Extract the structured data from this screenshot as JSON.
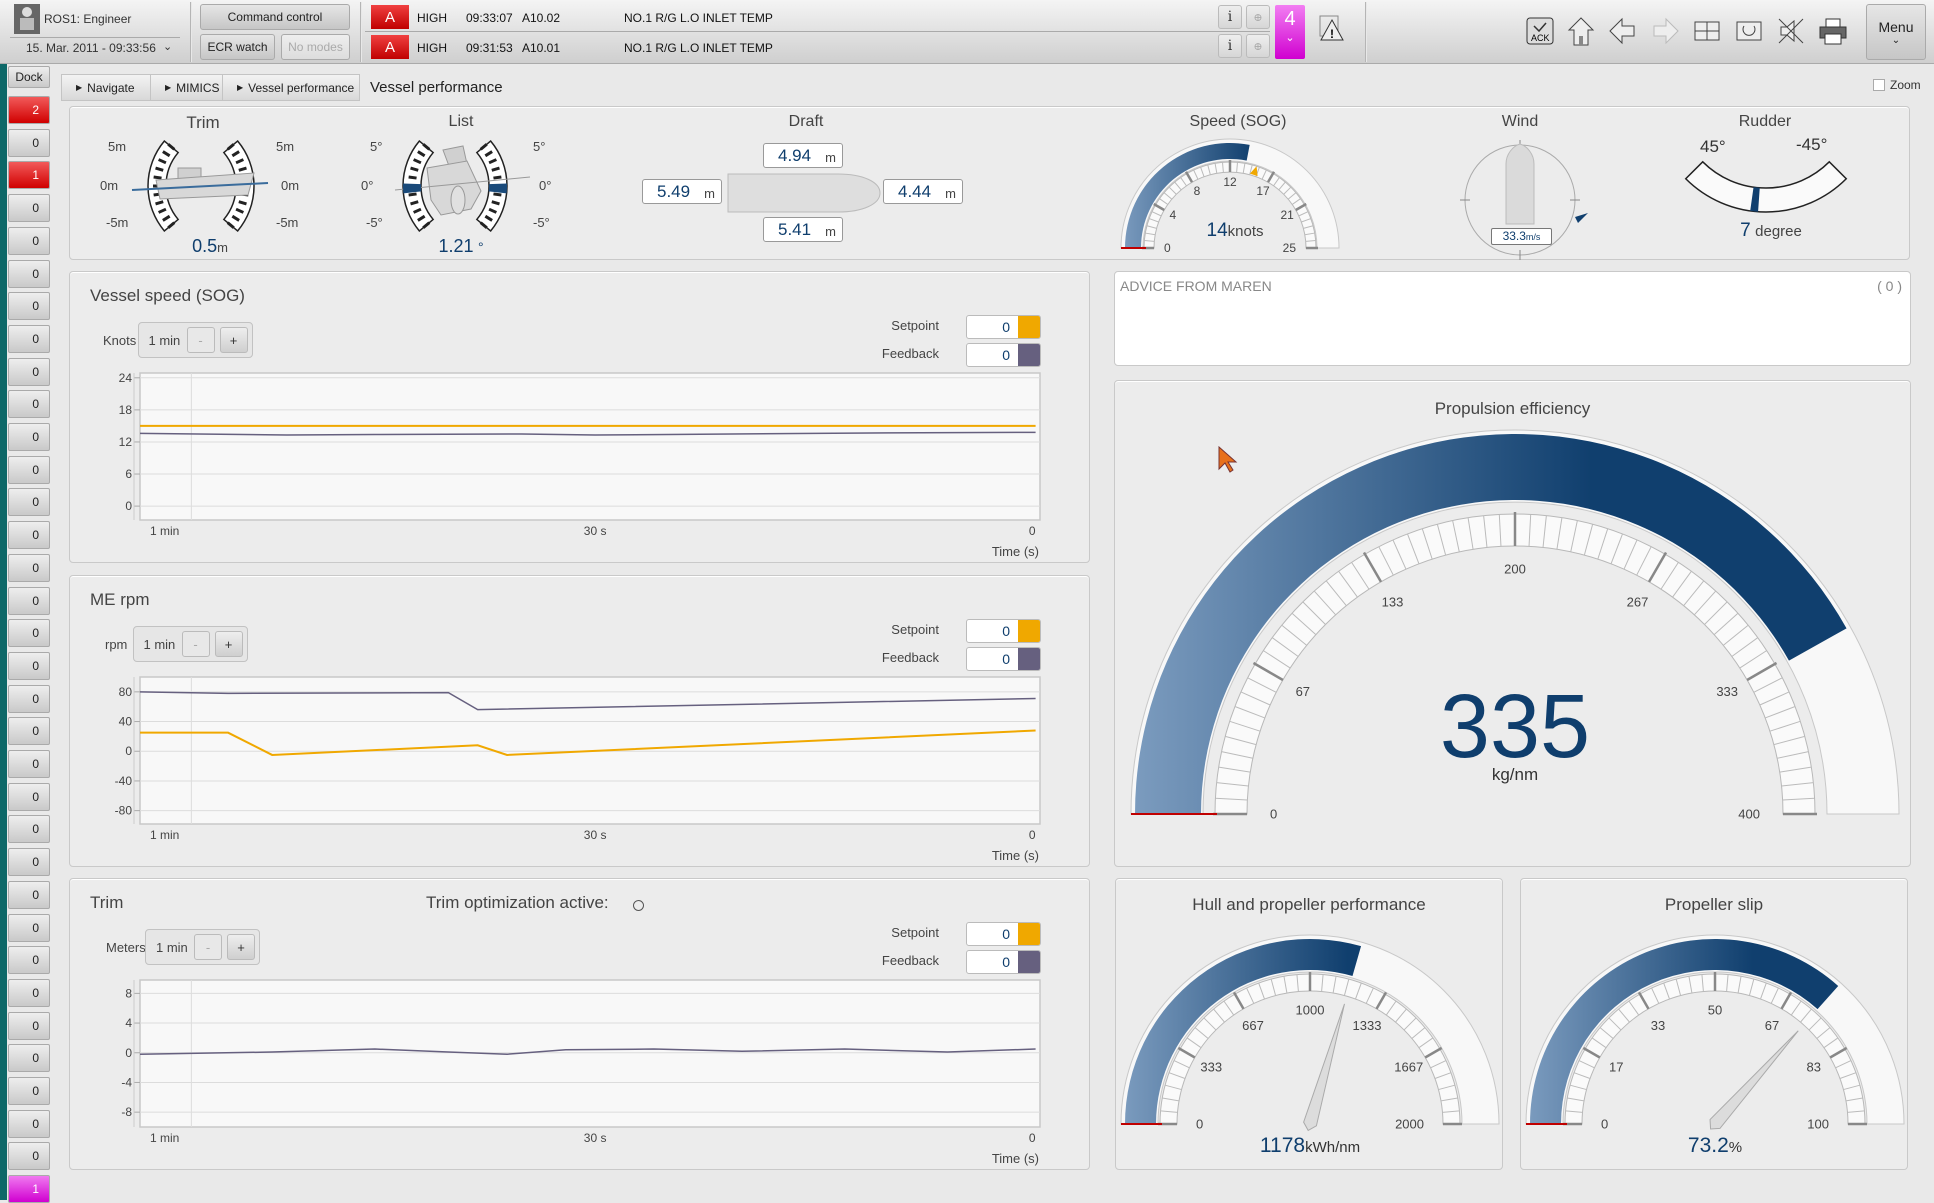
{
  "header": {
    "user": "ROS1: Engineer",
    "datetime": "15. Mar. 2011 - 09:33:56",
    "command_control": "Command control",
    "ecr_watch": "ECR watch",
    "no_modes": "No modes",
    "alarm_count": "4",
    "menu_label": "Menu",
    "alarms": [
      {
        "flag": "A",
        "level": "HIGH",
        "time": "09:33:07",
        "code": "A10.02",
        "text": "NO.1 R/G L.O INLET TEMP"
      },
      {
        "flag": "A",
        "level": "HIGH",
        "time": "09:31:53",
        "code": "A10.01",
        "text": "NO.1 R/G L.O INLET TEMP"
      }
    ],
    "toolbar_icons": [
      "ack-icon",
      "home-icon",
      "back-arrow-icon",
      "forward-arrow-icon",
      "window-layout-icon",
      "refresh-view-icon",
      "mute-sound-icon",
      "printer-icon"
    ],
    "ack_label": "ACK"
  },
  "sidebar": {
    "dock_label": "Dock",
    "items": [
      "2",
      "0",
      "1",
      "0",
      "0",
      "0",
      "0",
      "0",
      "0",
      "0",
      "0",
      "0",
      "0",
      "0",
      "0",
      "0",
      "0",
      "0",
      "0",
      "0",
      "0",
      "0",
      "0",
      "0",
      "0",
      "0",
      "0",
      "0",
      "0",
      "0",
      "0",
      "0",
      "0",
      "1"
    ],
    "item_states": [
      "alarm",
      "normal",
      "alarm",
      "normal",
      "normal",
      "normal",
      "normal",
      "normal",
      "normal",
      "normal",
      "normal",
      "normal",
      "normal",
      "normal",
      "normal",
      "normal",
      "normal",
      "normal",
      "normal",
      "normal",
      "normal",
      "normal",
      "normal",
      "normal",
      "normal",
      "normal",
      "normal",
      "normal",
      "normal",
      "normal",
      "normal",
      "normal",
      "normal",
      "warning"
    ]
  },
  "breadcrumb": {
    "items": [
      "Navigate",
      "MIMICS",
      "Vessel performance"
    ],
    "current": "Vessel performance"
  },
  "zoom_label": "Zoom",
  "colors": {
    "value_blue": "#0f3e6d",
    "setpoint": "#f0a800",
    "feedback": "#66607f",
    "alarm_red": "#d00000",
    "alarm_magenta": "#d000d0"
  },
  "overview": {
    "trim": {
      "title": "Trim",
      "scale_top": "5m",
      "scale_mid": "0m",
      "scale_bottom": "-5m",
      "value": "0.5",
      "unit": "m"
    },
    "list": {
      "title": "List",
      "scale_top": "5°",
      "scale_mid": "0°",
      "scale_bottom": "-5°",
      "value": "1.21",
      "unit": "°"
    },
    "draft": {
      "title": "Draft",
      "fwd": "4.94",
      "port": "5.49",
      "stbd": "4.44",
      "aft": "5.41",
      "unit": "m"
    },
    "speed": {
      "title": "Speed (SOG)",
      "value": "14",
      "unit": "knots",
      "min": 0,
      "max": 25,
      "setpoint": 15,
      "labels": [
        "0",
        "4",
        "8",
        "12",
        "17",
        "21",
        "25"
      ]
    },
    "wind": {
      "title": "Wind",
      "value": "33.3",
      "unit": "m/s"
    },
    "rudder": {
      "title": "Rudder",
      "left_label": "45°",
      "right_label": "-45°",
      "value": "7",
      "unit": "degree"
    }
  },
  "advice": {
    "title": "ADVICE FROM MAREN",
    "count": "( 0 )"
  },
  "gauges": {
    "propulsion": {
      "title": "Propulsion efficiency",
      "value": "335",
      "unit": "kg/nm",
      "min": 0,
      "max": 400,
      "labels": [
        "0",
        "67",
        "133",
        "200",
        "267",
        "333",
        "400"
      ]
    },
    "hull": {
      "title": "Hull and propeller performance",
      "value": "1178",
      "unit": "kWh/nm",
      "min": 0,
      "max": 2000,
      "fill": 1178,
      "labels": [
        "0",
        "333",
        "667",
        "1000",
        "1333",
        "1667",
        "2000"
      ]
    },
    "slip": {
      "title": "Propeller slip",
      "value": "73.2",
      "unit": "%",
      "min": 0,
      "max": 100,
      "fill": 73.2,
      "labels": [
        "0",
        "17",
        "33",
        "50",
        "67",
        "83",
        "100"
      ]
    }
  },
  "chart_data": [
    {
      "type": "line",
      "title": "Vessel speed (SOG)",
      "ylabel": "Knots",
      "xlabel": "Time (s)",
      "range_label": "1 min",
      "minus": "-",
      "plus": "+",
      "setpoint_label": "Setpoint",
      "setpoint_value": "0",
      "feedback_label": "Feedback",
      "feedback_value": "0",
      "yticks": [
        "24",
        "18",
        "12",
        "6",
        "0"
      ],
      "ytick_values": [
        24,
        18,
        12,
        6,
        0
      ],
      "xticks": [
        "1 min",
        "30 s",
        "0"
      ],
      "xtick_values": [
        -60,
        -30,
        0
      ],
      "xlim": [
        -61,
        0.3
      ],
      "ylim": [
        -2.6,
        24.9
      ],
      "grid": true,
      "series": [
        {
          "name": "Setpoint",
          "color": "#f0a800",
          "x": [
            -61,
            0
          ],
          "y": [
            15,
            15
          ]
        },
        {
          "name": "Feedback",
          "color": "#66607f",
          "x": [
            -61,
            -51,
            -45,
            -35,
            -30,
            -25,
            -15,
            -10,
            0
          ],
          "y": [
            13.6,
            13.3,
            13.4,
            13.5,
            13.3,
            13.4,
            13.6,
            13.7,
            13.8
          ]
        }
      ]
    },
    {
      "type": "line",
      "title": "ME rpm",
      "ylabel": "rpm",
      "xlabel": "Time (s)",
      "range_label": "1 min",
      "minus": "-",
      "plus": "+",
      "setpoint_label": "Setpoint",
      "setpoint_value": "0",
      "feedback_label": "Feedback",
      "feedback_value": "0",
      "yticks": [
        "80",
        "40",
        "0",
        "-40",
        "-80"
      ],
      "ytick_values": [
        80,
        40,
        0,
        -40,
        -80
      ],
      "xticks": [
        "1 min",
        "30 s",
        "0"
      ],
      "xtick_values": [
        -60,
        -30,
        0
      ],
      "xlim": [
        -61,
        0.3
      ],
      "ylim": [
        -98,
        100
      ],
      "grid": true,
      "series": [
        {
          "name": "Setpoint",
          "color": "#f0a800",
          "x": [
            -61,
            -55,
            -52,
            -38,
            -36,
            0
          ],
          "y": [
            25,
            25,
            -5,
            8,
            -5,
            28
          ]
        },
        {
          "name": "Feedback",
          "color": "#66607f",
          "x": [
            -61,
            -55,
            -40,
            -38,
            0
          ],
          "y": [
            80,
            78,
            79,
            56,
            71
          ]
        }
      ]
    },
    {
      "type": "line",
      "title": "Trim",
      "subtitle": "Trim optimization active:",
      "ylabel": "Meters",
      "xlabel": "Time (s)",
      "range_label": "1 min",
      "minus": "-",
      "plus": "+",
      "setpoint_label": "Setpoint",
      "setpoint_value": "0",
      "feedback_label": "Feedback",
      "feedback_value": "0",
      "yticks": [
        "8",
        "4",
        "0",
        "-4",
        "-8"
      ],
      "ytick_values": [
        8,
        4,
        0,
        -4,
        -8
      ],
      "xticks": [
        "1 min",
        "30 s",
        "0"
      ],
      "xtick_values": [
        -60,
        -30,
        0
      ],
      "xlim": [
        -61,
        0.3
      ],
      "ylim": [
        -10,
        9.8
      ],
      "grid": true,
      "series": [
        {
          "name": "Feedback",
          "color": "#66607f",
          "x": [
            -61,
            -52,
            -45,
            -40,
            -36,
            -32,
            -26,
            -20,
            -13,
            -6,
            0
          ],
          "y": [
            -0.2,
            0.1,
            0.5,
            0.1,
            -0.2,
            0.4,
            0.5,
            0.2,
            0.5,
            0.1,
            0.5
          ]
        }
      ]
    }
  ]
}
